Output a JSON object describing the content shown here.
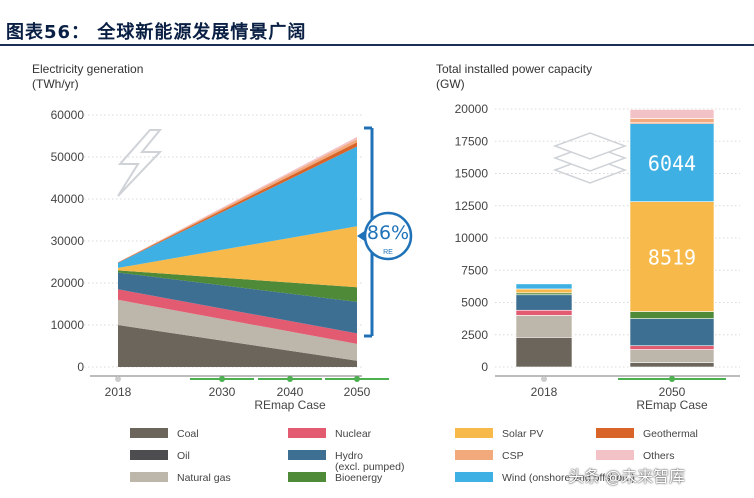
{
  "header": {
    "title": "图表56：  全球新能源发展情景广阔"
  },
  "watermark": "头条 @未来智库",
  "legend": [
    {
      "label": "Coal",
      "color": "#6b655b"
    },
    {
      "label": "Nuclear",
      "color": "#e25b70"
    },
    {
      "label": "Solar PV",
      "color": "#f7b94a"
    },
    {
      "label": "Geothermal",
      "color": "#d9642a"
    },
    {
      "label": "Oil",
      "color": "#4d4d4f"
    },
    {
      "label": "Hydro",
      "label2": "(excl. pumped)",
      "color": "#3d6f93"
    },
    {
      "label": "CSP",
      "color": "#f2a97c"
    },
    {
      "label": "Others",
      "color": "#f3c2c6"
    },
    {
      "label": "Natural gas",
      "color": "#bdb6ab"
    },
    {
      "label": "Bioenergy",
      "color": "#4f8a39"
    },
    {
      "label": "Wind (onshore and offshore)",
      "color": "#3fb0e3"
    }
  ],
  "chart_data": [
    {
      "type": "area",
      "title": "Electricity generation",
      "ylabel": "(TWh/yr)",
      "x": [
        2018,
        2050
      ],
      "x_tick_labels": [
        "2018",
        "2030",
        "2040",
        "2050"
      ],
      "x_caption": "REmap Case",
      "ylim": [
        0,
        60000
      ],
      "y_ticks": [
        "60000",
        "50000",
        "40000",
        "30000",
        "20000",
        "10000",
        "0"
      ],
      "series": [
        {
          "name": "Coal",
          "color": "#6b655b",
          "values": [
            10000,
            1500
          ]
        },
        {
          "name": "Natural gas",
          "color": "#bdb6ab",
          "values": [
            6000,
            4000
          ]
        },
        {
          "name": "Nuclear",
          "color": "#e25b70",
          "values": [
            2500,
            2500
          ]
        },
        {
          "name": "Hydro (excl. pumped)",
          "color": "#3d6f93",
          "values": [
            4000,
            7500
          ]
        },
        {
          "name": "Bioenergy",
          "color": "#4f8a39",
          "values": [
            500,
            3500
          ]
        },
        {
          "name": "Solar PV",
          "color": "#f7b94a",
          "values": [
            600,
            14500
          ]
        },
        {
          "name": "Wind (onshore and offshore)",
          "color": "#3fb0e3",
          "values": [
            1200,
            19000
          ]
        },
        {
          "name": "Geothermal",
          "color": "#d9642a",
          "values": [
            100,
            1000
          ]
        },
        {
          "name": "CSP",
          "color": "#f2a97c",
          "values": [
            20,
            800
          ]
        },
        {
          "name": "Others",
          "color": "#f3c2c6",
          "values": [
            20,
            500
          ]
        }
      ],
      "annotation": {
        "text": "86%",
        "sub": "RE"
      }
    },
    {
      "type": "bar",
      "title": "Total installed power capacity",
      "ylabel": "(GW)",
      "categories": [
        "2018",
        "2050"
      ],
      "x_caption": "REmap Case",
      "ylim": [
        0,
        20000
      ],
      "y_ticks": [
        "20000",
        "17500",
        "15000",
        "12500",
        "10000",
        "7500",
        "5000",
        "2500",
        "0"
      ],
      "series": [
        {
          "name": "Coal",
          "color": "#6b655b",
          "values": [
            2300,
            350
          ]
        },
        {
          "name": "Natural gas",
          "color": "#bdb6ab",
          "values": [
            1700,
            1000
          ]
        },
        {
          "name": "Nuclear",
          "color": "#e25b70",
          "values": [
            400,
            300
          ]
        },
        {
          "name": "Hydro (excl. pumped)",
          "color": "#3d6f93",
          "values": [
            1200,
            2100
          ]
        },
        {
          "name": "Bioenergy",
          "color": "#4f8a39",
          "values": [
            150,
            550
          ]
        },
        {
          "name": "Solar PV",
          "color": "#f7b94a",
          "values": [
            300,
            8519
          ]
        },
        {
          "name": "Wind (onshore and offshore)",
          "color": "#3fb0e3",
          "values": [
            400,
            6044
          ]
        },
        {
          "name": "Geothermal",
          "color": "#d9642a",
          "values": [
            20,
            100
          ]
        },
        {
          "name": "CSP",
          "color": "#f2a97c",
          "values": [
            10,
            300
          ]
        },
        {
          "name": "Others",
          "color": "#f3c2c6",
          "values": [
            20,
            700
          ]
        }
      ],
      "data_labels": [
        {
          "series": "Wind (onshore and offshore)",
          "text": "6044"
        },
        {
          "series": "Solar PV",
          "text": "8519"
        }
      ]
    }
  ]
}
